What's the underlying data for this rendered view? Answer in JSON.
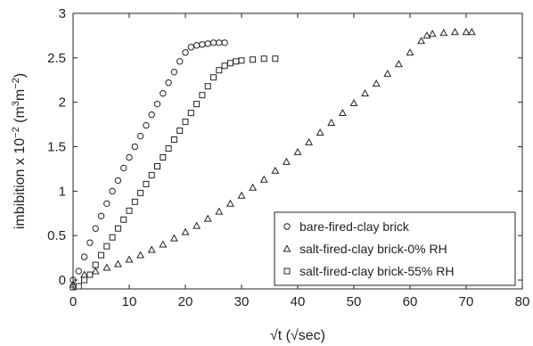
{
  "chart_data": {
    "type": "scatter",
    "xlabel": "√t (√sec)",
    "ylabel_main": "imbibition x 10",
    "ylabel_exp": "−2",
    "ylabel_unit_open": " (m",
    "ylabel_unit_exp1": "3",
    "ylabel_unit_mid": "m",
    "ylabel_unit_exp2": "−2",
    "ylabel_unit_close": ")",
    "xlim": [
      0,
      80
    ],
    "ylim": [
      -0.1,
      3
    ],
    "xticks": [
      "0",
      "10",
      "20",
      "30",
      "40",
      "50",
      "60",
      "70",
      "80"
    ],
    "yticks": [
      "0",
      "0.5",
      "1",
      "1.5",
      "2",
      "2.5",
      "3"
    ],
    "grid": false,
    "legend_position": "lower-right",
    "series": [
      {
        "name": "bare-fired-clay brick",
        "marker": "circle",
        "x": [
          0,
          1,
          2,
          3,
          4,
          5,
          6,
          7,
          8,
          9,
          10,
          11,
          12,
          13,
          14,
          15,
          16,
          17,
          18,
          19,
          20,
          21,
          22,
          23,
          24,
          25,
          26,
          27
        ],
        "y": [
          0.0,
          0.1,
          0.26,
          0.42,
          0.58,
          0.72,
          0.86,
          1.0,
          1.12,
          1.26,
          1.38,
          1.5,
          1.62,
          1.74,
          1.86,
          1.98,
          2.1,
          2.22,
          2.34,
          2.46,
          2.56,
          2.62,
          2.64,
          2.65,
          2.66,
          2.67,
          2.67,
          2.67
        ]
      },
      {
        "name": "salt-fired-clay brick-0% RH",
        "marker": "triangle",
        "x": [
          0,
          2,
          4,
          6,
          8,
          10,
          12,
          14,
          16,
          18,
          20,
          22,
          24,
          26,
          28,
          30,
          32,
          34,
          36,
          38,
          40,
          42,
          44,
          46,
          48,
          50,
          52,
          54,
          56,
          58,
          60,
          62,
          63,
          64,
          66,
          68,
          70,
          71
        ],
        "y": [
          -0.05,
          0.06,
          0.1,
          0.14,
          0.18,
          0.23,
          0.28,
          0.34,
          0.4,
          0.47,
          0.54,
          0.61,
          0.69,
          0.77,
          0.86,
          0.95,
          1.04,
          1.13,
          1.23,
          1.33,
          1.44,
          1.55,
          1.66,
          1.77,
          1.88,
          1.99,
          2.1,
          2.21,
          2.32,
          2.43,
          2.56,
          2.69,
          2.75,
          2.77,
          2.78,
          2.79,
          2.79,
          2.79
        ]
      },
      {
        "name": "salt-fired-clay brick-55% RH",
        "marker": "square",
        "x": [
          0,
          1,
          2,
          3,
          4,
          5,
          6,
          7,
          8,
          9,
          10,
          11,
          12,
          13,
          14,
          15,
          16,
          17,
          18,
          19,
          20,
          21,
          22,
          23,
          24,
          25,
          26,
          27,
          28,
          29,
          30,
          32,
          34,
          36
        ],
        "y": [
          -0.08,
          -0.07,
          0.0,
          0.06,
          0.17,
          0.28,
          0.38,
          0.48,
          0.58,
          0.68,
          0.78,
          0.88,
          0.98,
          1.08,
          1.18,
          1.28,
          1.38,
          1.48,
          1.58,
          1.68,
          1.78,
          1.88,
          1.98,
          2.08,
          2.18,
          2.28,
          2.36,
          2.41,
          2.44,
          2.46,
          2.47,
          2.48,
          2.49,
          2.49
        ]
      }
    ]
  }
}
